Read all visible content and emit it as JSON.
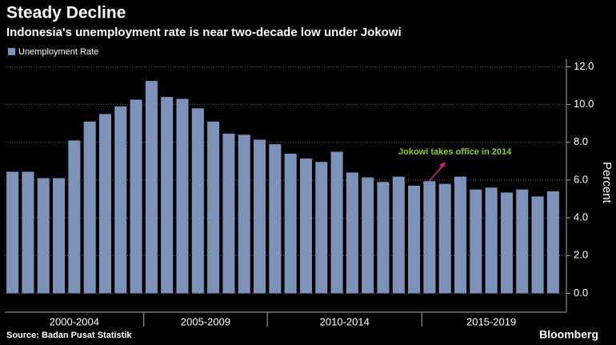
{
  "chart_data": {
    "type": "bar",
    "title": "Steady Decline",
    "subtitle": "Indonesia's unemployment rate is near two-decade low under Jokowi",
    "series": [
      {
        "name": "Unemployment Rate",
        "color": "#7d92b8",
        "values": [
          6.44,
          6.44,
          6.1,
          6.1,
          8.1,
          9.1,
          9.5,
          9.9,
          10.26,
          11.25,
          10.4,
          10.3,
          9.8,
          9.1,
          8.46,
          8.4,
          8.14,
          7.9,
          7.4,
          7.14,
          6.96,
          7.5,
          6.4,
          6.14,
          5.9,
          6.18,
          5.7,
          5.94,
          5.8,
          6.18,
          5.5,
          5.6,
          5.34,
          5.5,
          5.13,
          5.4
        ]
      }
    ],
    "categories": [
      null,
      null,
      null,
      null,
      null,
      null,
      null,
      null,
      null,
      null,
      null,
      null,
      null,
      null,
      null,
      null,
      null,
      null,
      null,
      null,
      null,
      null,
      null,
      null,
      null,
      null,
      null,
      null,
      null,
      null,
      null,
      null,
      null,
      null,
      null,
      null
    ],
    "x_groups": [
      {
        "label": "2000-2004",
        "count": 9
      },
      {
        "label": "2005-2009",
        "count": 8
      },
      {
        "label": "2010-2014",
        "count": 10
      },
      {
        "label": "2015-2019",
        "count": 9
      }
    ],
    "ylabel": "Percent",
    "ylim": [
      -1.0,
      12.4
    ],
    "yticks": [
      {
        "value": 0,
        "label": "0.0"
      },
      {
        "value": 2,
        "label": "2.0"
      },
      {
        "value": 4,
        "label": "4.0"
      },
      {
        "value": 6,
        "label": "6.0"
      },
      {
        "value": 8,
        "label": "8.0"
      },
      {
        "value": 10,
        "label": "10.0"
      },
      {
        "value": 12,
        "label": "12.0"
      }
    ],
    "grid": true,
    "annotation": "Jokowi takes office in 2014",
    "source": "Source: Badan Pusat Statistik",
    "brand": "Bloomberg"
  }
}
